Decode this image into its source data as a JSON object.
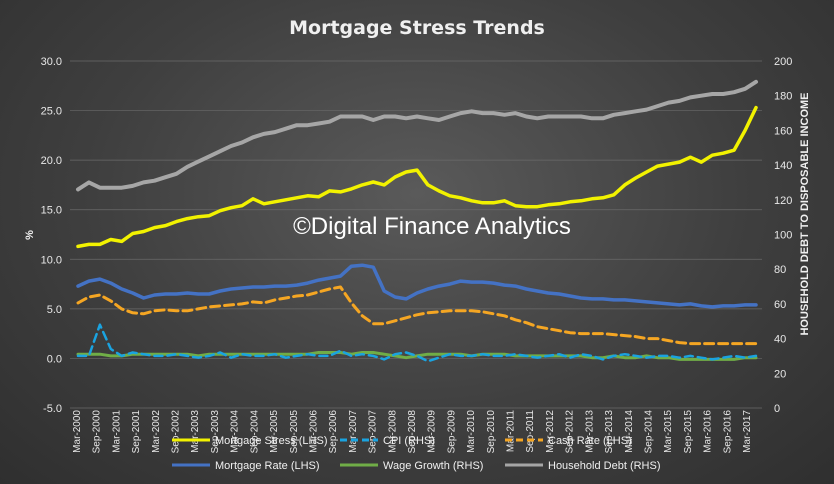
{
  "chart_data": {
    "type": "line",
    "title": "Mortgage Stress Trends",
    "watermark": "©Digital Finance Analytics",
    "ylabel_left": "%",
    "ylabel_right": "HOUSEHOLD DEBT TO DISPOSABLE INCOME",
    "ylim_left": [
      -5,
      30
    ],
    "yticks_left": [
      "30.0",
      "25.0",
      "20.0",
      "15.0",
      "10.0",
      "5.0",
      "0.0",
      "-5.0"
    ],
    "ylim_right": [
      0,
      200
    ],
    "yticks_right": [
      "200",
      "180",
      "160",
      "140",
      "120",
      "100",
      "80",
      "60",
      "40",
      "20",
      "0"
    ],
    "grid": true,
    "legend_position": "bottom",
    "x_labels": [
      "Mar-2000",
      "Sep-2000",
      "Mar-2001",
      "Sep-2001",
      "Mar-2002",
      "Sep-2002",
      "Mar-2003",
      "Sep-2003",
      "Mar-2004",
      "Sep-2004",
      "Mar-2005",
      "Sep-2005",
      "Mar-2006",
      "Sep-2006",
      "Mar-2007",
      "Sep-2007",
      "Mar-2008",
      "Sep-2008",
      "Mar-2009",
      "Sep-2009",
      "Mar-2010",
      "Sep-2010",
      "Mar-2011",
      "Sep-2011",
      "Mar-2012",
      "Sep-2012",
      "Mar-2013",
      "Sep-2013",
      "Mar-2014",
      "Sep-2014",
      "Mar-2015",
      "Sep-2015",
      "Mar-2016",
      "Sep-2016",
      "Mar-2017"
    ],
    "series": [
      {
        "name": "Mortgage Stress (LHS)",
        "axis": "left",
        "color": "#f2f200",
        "dash": "none",
        "width": 3.5,
        "values": [
          11.3,
          11.5,
          11.5,
          12.0,
          11.8,
          12.6,
          12.8,
          13.2,
          13.4,
          13.8,
          14.1,
          14.3,
          14.4,
          14.9,
          15.2,
          15.4,
          16.1,
          15.6,
          15.8,
          16.0,
          16.2,
          16.4,
          16.3,
          16.9,
          16.8,
          17.1,
          17.5,
          17.8,
          17.5,
          18.3,
          18.8,
          19.0,
          17.5,
          16.9,
          16.4,
          16.2,
          15.9,
          15.7,
          15.7,
          15.9,
          15.4,
          15.3,
          15.3,
          15.5,
          15.6,
          15.8,
          15.9,
          16.1,
          16.2,
          16.5,
          17.5,
          18.2,
          18.8,
          19.4,
          19.6,
          19.8,
          20.3,
          19.8,
          20.5,
          20.7,
          21.0,
          23.0,
          25.3
        ]
      },
      {
        "name": "CPI (RHS)",
        "axis": "right",
        "color": "#1aa3e0",
        "dash": "8,5",
        "width": 2.5,
        "values": [
          30,
          30,
          48,
          34,
          30,
          32,
          31,
          30,
          30,
          31,
          30,
          29,
          30,
          32,
          29,
          31,
          30,
          30,
          31,
          29,
          30,
          31,
          30,
          30,
          33,
          30,
          31,
          30,
          28,
          31,
          32,
          30,
          27,
          29,
          31,
          30,
          30,
          31,
          30,
          30,
          31,
          30,
          29,
          30,
          31,
          29,
          31,
          30,
          28,
          30,
          31,
          30,
          29,
          30,
          30,
          29,
          30,
          29,
          28,
          29,
          30,
          29,
          30
        ]
      },
      {
        "name": "Cash Rate (LHS)",
        "axis": "left",
        "color": "#f5a623",
        "dash": "9,5",
        "width": 3,
        "values": [
          5.6,
          6.2,
          6.4,
          5.8,
          5.0,
          4.6,
          4.5,
          4.8,
          4.9,
          4.8,
          4.8,
          5.0,
          5.2,
          5.3,
          5.4,
          5.5,
          5.7,
          5.6,
          5.9,
          6.1,
          6.3,
          6.4,
          6.7,
          7.0,
          7.2,
          5.6,
          4.3,
          3.5,
          3.5,
          3.8,
          4.1,
          4.4,
          4.6,
          4.7,
          4.8,
          4.8,
          4.8,
          4.7,
          4.5,
          4.3,
          3.9,
          3.6,
          3.2,
          3.0,
          2.8,
          2.6,
          2.5,
          2.5,
          2.5,
          2.4,
          2.3,
          2.2,
          2.0,
          2.0,
          1.8,
          1.6,
          1.5,
          1.5,
          1.5,
          1.5,
          1.5,
          1.5,
          1.5
        ]
      },
      {
        "name": "Mortgage Rate (LHS)",
        "axis": "left",
        "color": "#4472c4",
        "dash": "none",
        "width": 3.5,
        "values": [
          7.3,
          7.8,
          8.0,
          7.6,
          7.0,
          6.6,
          6.1,
          6.4,
          6.5,
          6.5,
          6.6,
          6.5,
          6.5,
          6.8,
          7.0,
          7.1,
          7.2,
          7.2,
          7.3,
          7.3,
          7.4,
          7.6,
          7.9,
          8.1,
          8.3,
          9.3,
          9.4,
          9.2,
          6.8,
          6.2,
          6.0,
          6.6,
          7.0,
          7.3,
          7.5,
          7.8,
          7.7,
          7.7,
          7.6,
          7.4,
          7.3,
          7.0,
          6.8,
          6.6,
          6.5,
          6.3,
          6.1,
          6.0,
          6.0,
          5.9,
          5.9,
          5.8,
          5.7,
          5.6,
          5.5,
          5.4,
          5.5,
          5.3,
          5.2,
          5.3,
          5.3,
          5.4,
          5.4
        ]
      },
      {
        "name": "Wage Growth (RHS)",
        "axis": "right",
        "color": "#70ad47",
        "dash": "none",
        "width": 3,
        "values": [
          31,
          31,
          31,
          30,
          30,
          31,
          31,
          31,
          31,
          31,
          31,
          30,
          31,
          31,
          31,
          31,
          31,
          31,
          31,
          31,
          31,
          31,
          32,
          32,
          32,
          31,
          32,
          32,
          31,
          30,
          29,
          30,
          31,
          31,
          31,
          31,
          30,
          31,
          31,
          31,
          30,
          30,
          30,
          30,
          30,
          30,
          30,
          29,
          29,
          30,
          29,
          29,
          30,
          29,
          29,
          28,
          28,
          28,
          28,
          28,
          28,
          29,
          29
        ]
      },
      {
        "name": "Household Debt (RHS)",
        "axis": "right",
        "color": "#a6a6a6",
        "dash": "none",
        "width": 4,
        "values": [
          126,
          130,
          127,
          127,
          127,
          128,
          130,
          131,
          133,
          135,
          139,
          142,
          145,
          148,
          151,
          153,
          156,
          158,
          159,
          161,
          163,
          163,
          164,
          165,
          168,
          168,
          168,
          166,
          168,
          168,
          167,
          168,
          167,
          166,
          168,
          170,
          171,
          170,
          170,
          169,
          170,
          168,
          167,
          168,
          168,
          168,
          168,
          167,
          167,
          169,
          170,
          171,
          172,
          174,
          176,
          177,
          179,
          180,
          181,
          181,
          182,
          184,
          188
        ]
      }
    ]
  }
}
